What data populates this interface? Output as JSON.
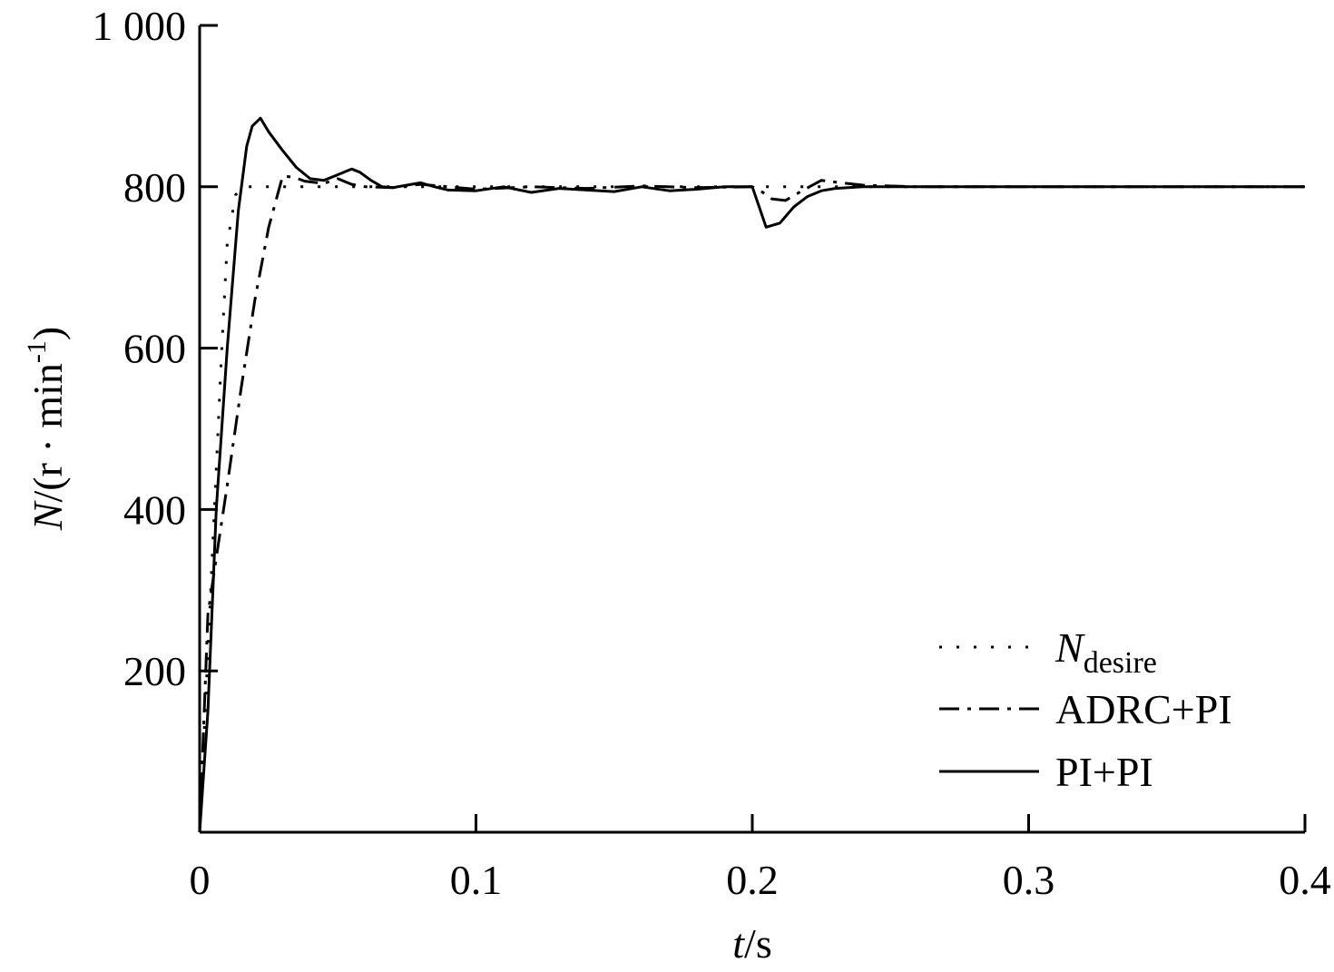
{
  "chart_data": {
    "type": "line",
    "xlabel_italic": "t",
    "xlabel_rest": "/s",
    "ylabel_italic": "N",
    "ylabel_rest": "/(r · min",
    "ylabel_sup": "-1",
    "ylabel_close": ")",
    "xlim": [
      0,
      0.4
    ],
    "ylim": [
      0,
      1000
    ],
    "x_ticks": [
      0,
      0.1,
      0.2,
      0.3,
      0.4
    ],
    "x_tick_labels": [
      "0",
      "0.1",
      "0.2",
      "0.3",
      "0.4"
    ],
    "y_ticks": [
      200,
      400,
      600,
      800,
      1000
    ],
    "y_tick_labels": [
      "200",
      "400",
      "600",
      "800",
      "1 000"
    ],
    "grid": false,
    "legend_position": "bottom-right",
    "series": [
      {
        "name": "N",
        "name_sub": "desire",
        "style": "dotted",
        "x": [
          0,
          0.002,
          0.004,
          0.006,
          0.008,
          0.01,
          0.013,
          0.016,
          0.02,
          0.03,
          0.05,
          0.08,
          0.1,
          0.15,
          0.2,
          0.25,
          0.3,
          0.35,
          0.4
        ],
        "y": [
          0,
          150,
          300,
          450,
          600,
          730,
          790,
          800,
          800,
          800,
          800,
          800,
          800,
          800,
          800,
          800,
          800,
          800,
          800
        ]
      },
      {
        "name": "ADRC+PI",
        "style": "dashdot",
        "x": [
          0,
          0.003,
          0.006,
          0.01,
          0.015,
          0.02,
          0.025,
          0.03,
          0.034,
          0.038,
          0.045,
          0.05,
          0.055,
          0.06,
          0.07,
          0.08,
          0.1,
          0.12,
          0.14,
          0.16,
          0.18,
          0.2,
          0.203,
          0.207,
          0.212,
          0.218,
          0.225,
          0.232,
          0.24,
          0.26,
          0.3,
          0.35,
          0.4
        ],
        "y": [
          0,
          270,
          340,
          430,
          550,
          660,
          750,
          813,
          812,
          807,
          804,
          810,
          803,
          800,
          799,
          803,
          797,
          800,
          798,
          801,
          799,
          800,
          795,
          785,
          783,
          795,
          808,
          805,
          802,
          800,
          800,
          800,
          800
        ]
      },
      {
        "name": "PI+PI",
        "style": "solid",
        "x": [
          0,
          0.003,
          0.006,
          0.01,
          0.014,
          0.017,
          0.019,
          0.022,
          0.025,
          0.03,
          0.035,
          0.04,
          0.045,
          0.05,
          0.055,
          0.058,
          0.062,
          0.066,
          0.07,
          0.075,
          0.08,
          0.085,
          0.09,
          0.1,
          0.11,
          0.12,
          0.13,
          0.14,
          0.15,
          0.16,
          0.17,
          0.18,
          0.19,
          0.2,
          0.202,
          0.205,
          0.21,
          0.215,
          0.22,
          0.225,
          0.23,
          0.24,
          0.26,
          0.3,
          0.35,
          0.4
        ],
        "y": [
          0,
          150,
          400,
          600,
          770,
          850,
          875,
          885,
          868,
          845,
          824,
          810,
          808,
          815,
          822,
          818,
          808,
          800,
          799,
          802,
          805,
          800,
          796,
          795,
          800,
          793,
          798,
          796,
          794,
          800,
          795,
          797,
          800,
          800,
          780,
          750,
          755,
          775,
          788,
          795,
          798,
          800,
          800,
          800,
          800,
          800
        ]
      }
    ]
  }
}
